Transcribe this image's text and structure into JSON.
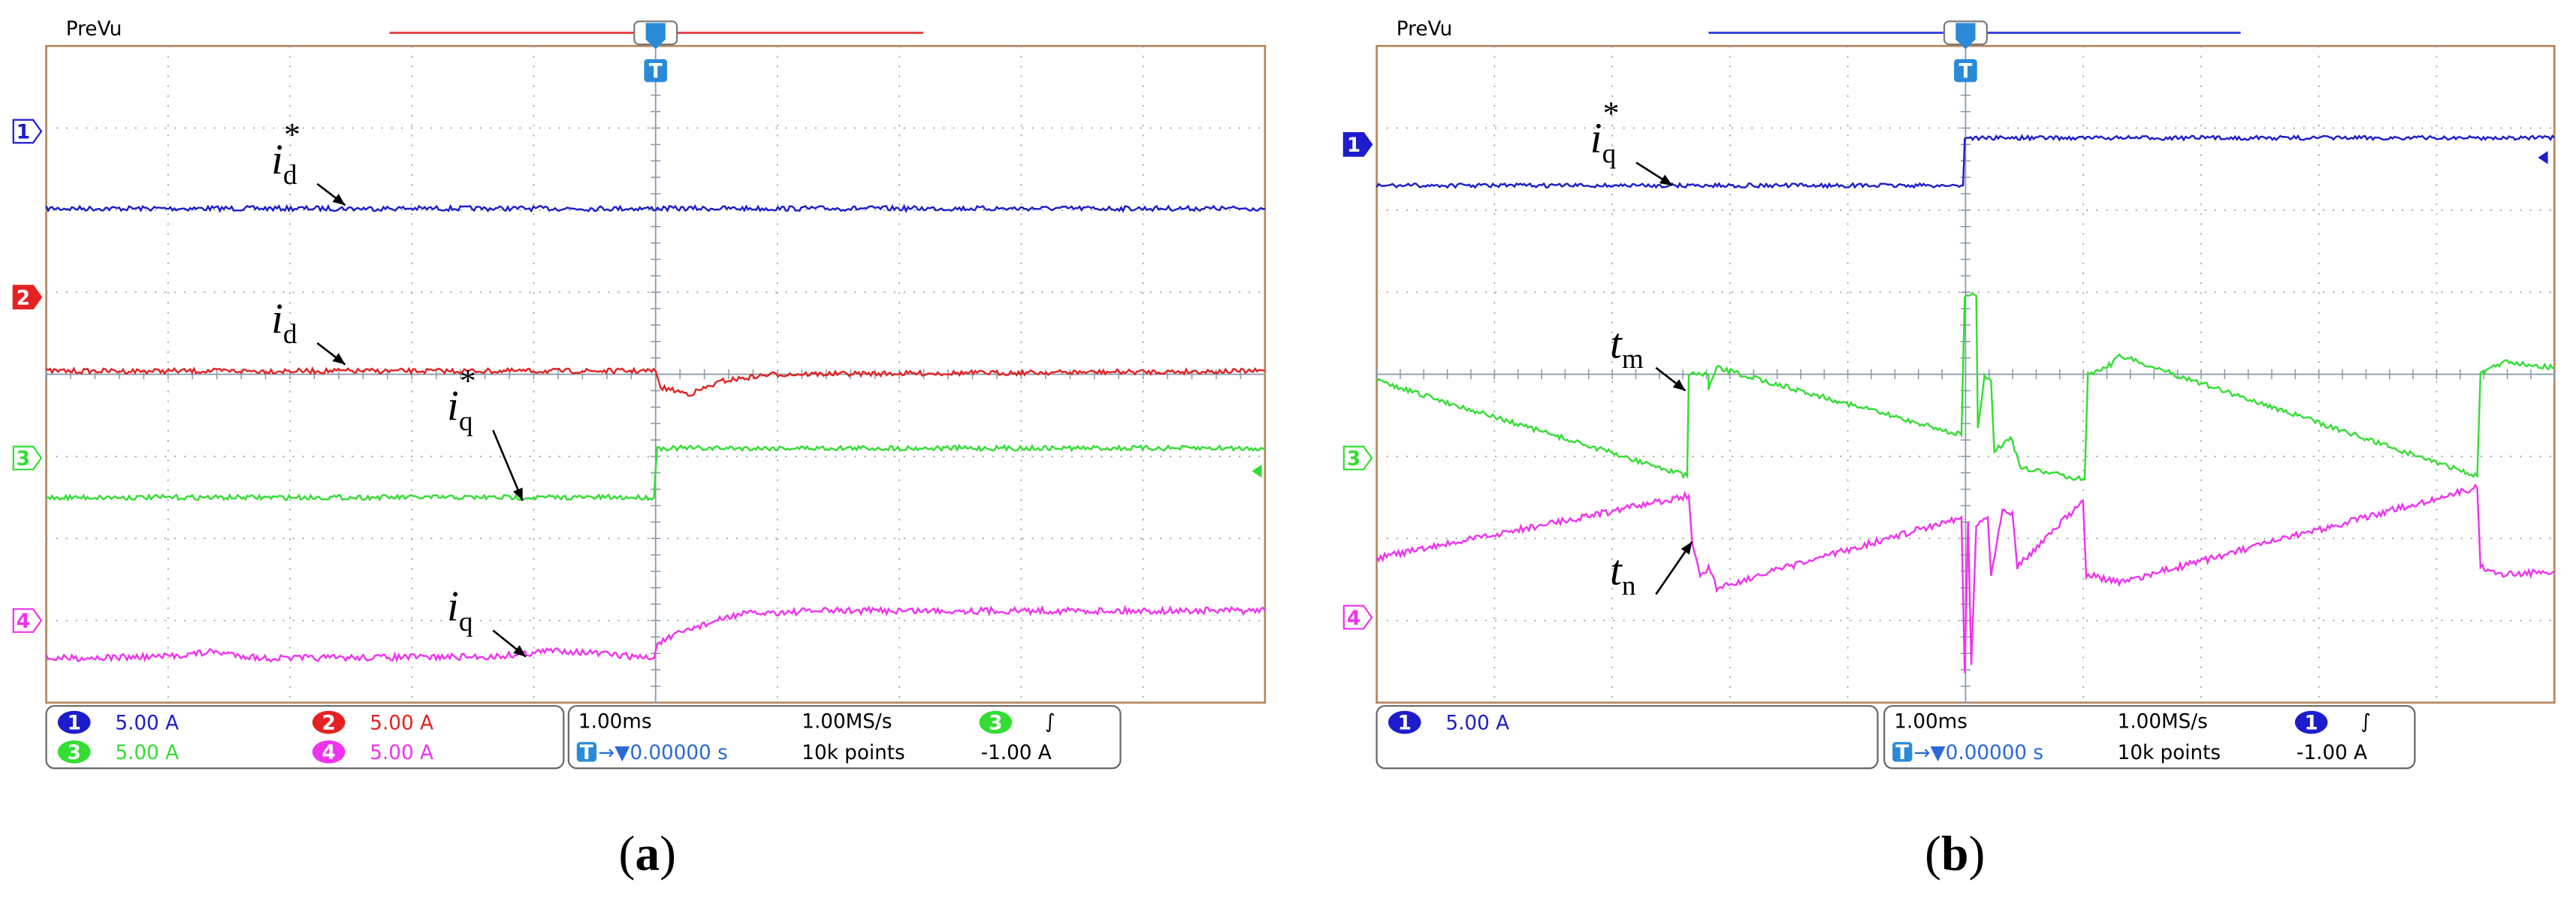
{
  "panels": [
    {
      "header": {
        "mode": "PreVu",
        "trigger": "T"
      },
      "channel_markers": [
        "1",
        "2",
        "3",
        "4"
      ],
      "trace_labels": [
        {
          "base": "i",
          "sub": "d",
          "sup": "*"
        },
        {
          "base": "i",
          "sub": "d"
        },
        {
          "base": "i",
          "sub": "q",
          "sup": "*"
        },
        {
          "base": "i",
          "sub": "q"
        }
      ],
      "readout": {
        "channels": [
          {
            "id": "1",
            "scale": "5.00 A"
          },
          {
            "id": "2",
            "scale": "5.00 A"
          },
          {
            "id": "3",
            "scale": "5.00 A"
          },
          {
            "id": "4",
            "scale": "5.00 A"
          }
        ],
        "timebase": "1.00ms",
        "sample_rate": "1.00MS/s",
        "trigger_source": "3",
        "trigger_slope": "∫",
        "trigger_icon": "T",
        "position": "→▼0.00000 s",
        "record_length": "10k points",
        "trigger_level": "-1.00 A"
      },
      "caption": {
        "open": "(",
        "letter": "a",
        "close": ")"
      }
    },
    {
      "header": {
        "mode": "PreVu",
        "trigger": "T"
      },
      "channel_markers": [
        "1",
        "3",
        "4"
      ],
      "trace_labels": [
        {
          "base": "i",
          "sub": "q",
          "sup": "*"
        },
        {
          "base": "t",
          "sub": "m"
        },
        {
          "base": "t",
          "sub": "n"
        }
      ],
      "readout": {
        "channels": [
          {
            "id": "1",
            "scale": "5.00 A"
          }
        ],
        "timebase": "1.00ms",
        "sample_rate": "1.00MS/s",
        "trigger_source": "1",
        "trigger_slope": "∫",
        "trigger_icon": "T",
        "position": "→▼0.00000 s",
        "record_length": "10k points",
        "trigger_level": "-1.00 A"
      },
      "caption": {
        "open": "(",
        "letter": "b",
        "close": ")"
      }
    }
  ]
}
